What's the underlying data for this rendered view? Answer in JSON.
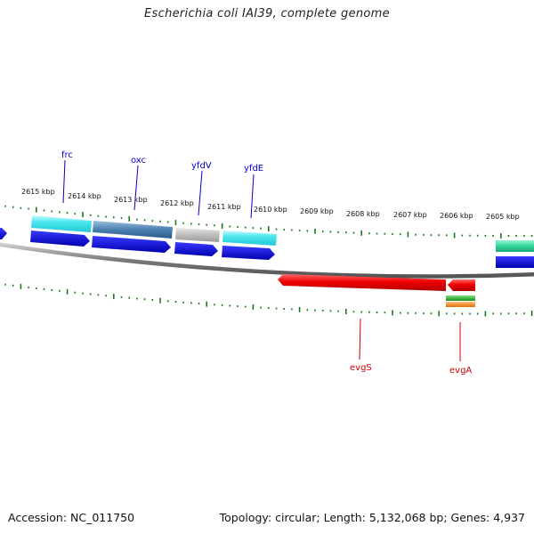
{
  "title": "Escherichia coli IAI39, complete genome",
  "accession_text": "Accession: NC_011750",
  "topology_text": "Topology: circular; Length: 5,132,068 bp; Genes: 4,937",
  "kbp_labels": [
    "2615 kbp",
    "2614 kbp",
    "2613 kbp",
    "2612 kbp",
    "2611 kbp",
    "2610 kbp",
    "2609 kbp",
    "2608 kbp",
    "2607 kbp",
    "2606 kbp",
    "2605 kbp"
  ],
  "gene_labels": {
    "frc": "frc",
    "oxc": "oxc",
    "yfdV": "yfdV",
    "yfdE": "yfdE",
    "evgS": "evgS",
    "evgA": "evgA"
  },
  "colors": {
    "backbone": "#808080",
    "tick": "#1a7a1a",
    "forward_label": "#0000cc",
    "reverse_label": "#cc0000",
    "cds_blue": "#0000dd",
    "cyan": "#33e0e8",
    "steel": "#4a7fb0",
    "gray_gene": "#b8b8b8",
    "teal": "#2ed59a",
    "red": "#ee0000",
    "orange": "#f08a1a",
    "green": "#22aa22"
  }
}
